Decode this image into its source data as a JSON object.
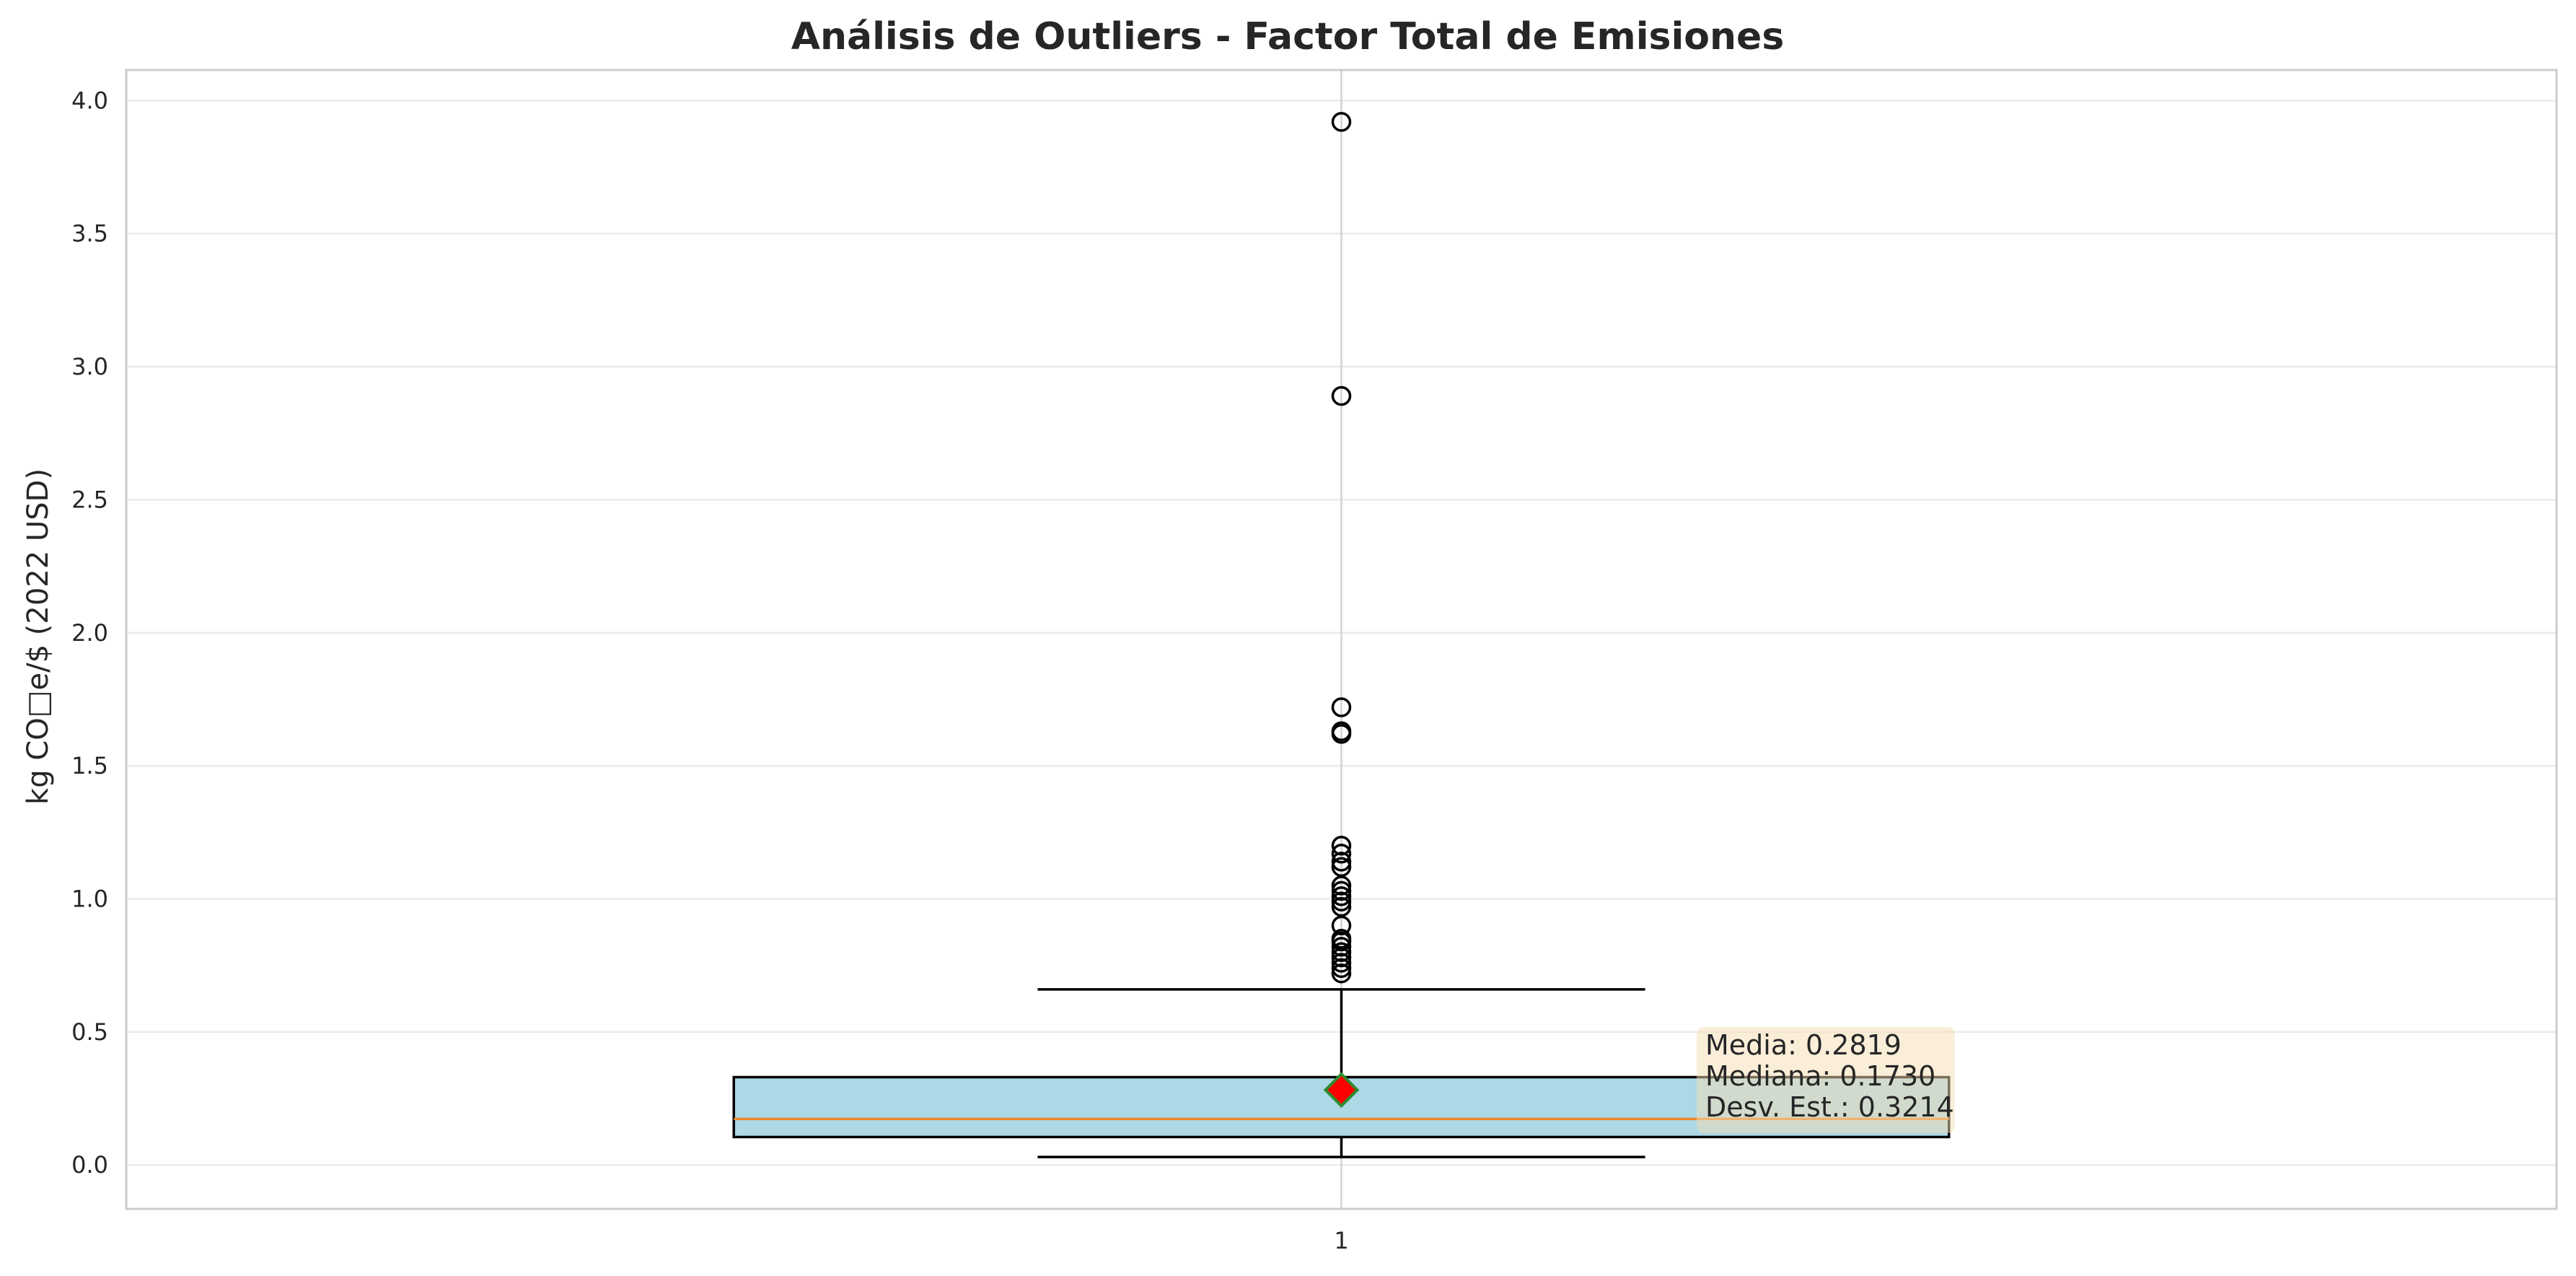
{
  "chart_data": {
    "type": "box",
    "title": "Análisis de Outliers - Factor Total de Emisiones",
    "xlabel": "",
    "ylabel": "kg CO□e/$ (2022 USD)",
    "ylim": [
      -0.165,
      4.115
    ],
    "yticks": [
      0.0,
      0.5,
      1.0,
      1.5,
      2.0,
      2.5,
      3.0,
      3.5,
      4.0
    ],
    "ytick_labels": [
      "0.0",
      "0.5",
      "1.0",
      "1.5",
      "2.0",
      "2.5",
      "3.0",
      "3.5",
      "4.0"
    ],
    "xticks": [
      1
    ],
    "xtick_labels": [
      "1"
    ],
    "grid": true,
    "series": [
      {
        "position": 1,
        "whisker_low": 0.03,
        "q1": 0.105,
        "median": 0.173,
        "q3": 0.33,
        "whisker_high": 0.66,
        "mean": 0.2819,
        "outliers": [
          0.72,
          0.74,
          0.76,
          0.78,
          0.8,
          0.82,
          0.84,
          0.85,
          0.9,
          0.97,
          0.99,
          1.01,
          1.03,
          1.05,
          1.12,
          1.14,
          1.17,
          1.2,
          1.62,
          1.63,
          1.72,
          2.89,
          3.92
        ]
      }
    ],
    "colors": {
      "box_fill": "#add8e6",
      "box_edge": "#000000",
      "median": "#e8882a",
      "mean_fill": "#ff0000",
      "mean_edge": "#2e8b2e",
      "grid": "#ebebeb",
      "spine": "#cccccc",
      "stats_box": "#f5deb3"
    },
    "annotation": {
      "lines": [
        "Media: 0.2819",
        "Mediana: 0.1730",
        "Desv. Est.: 0.3214"
      ]
    }
  }
}
